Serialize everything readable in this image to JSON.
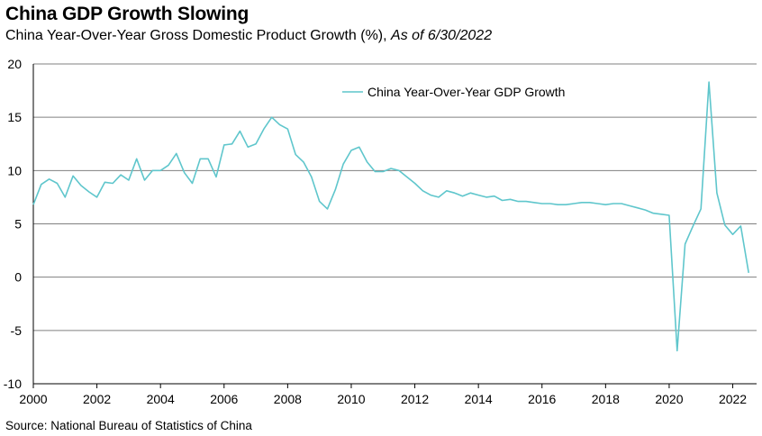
{
  "header": {
    "title": "China GDP Growth Slowing",
    "subtitle_main": "China Year-Over-Year Gross Domestic Product Growth (%), ",
    "subtitle_date": "As of 6/30/2022"
  },
  "footer": {
    "source": "Source: National Bureau of Statistics of China"
  },
  "colors": {
    "series": "#5fc6cc",
    "grid": "#808080",
    "axis": "#000000"
  },
  "chart_data": {
    "type": "line",
    "title": "China GDP Growth Slowing",
    "xlabel": "",
    "ylabel": "",
    "xlim": [
      2000,
      2022.75
    ],
    "ylim": [
      -10,
      20
    ],
    "yticks": [
      20,
      15,
      10,
      5,
      0,
      -5,
      -10
    ],
    "ytick_labels": [
      "20",
      "15",
      "10",
      "5",
      "0",
      "-5",
      "-10"
    ],
    "xticks": [
      2000,
      2002,
      2004,
      2006,
      2008,
      2010,
      2012,
      2014,
      2016,
      2018,
      2020,
      2022
    ],
    "xtick_labels": [
      "2000",
      "2002",
      "2004",
      "2006",
      "2008",
      "2010",
      "2012",
      "2014",
      "2016",
      "2018",
      "2020",
      "2022"
    ],
    "grid": true,
    "legend_position": "top-center",
    "series": [
      {
        "name": "China Year-Over-Year GDP Growth",
        "x": [
          2000,
          2000.25,
          2000.5,
          2000.75,
          2001,
          2001.25,
          2001.5,
          2001.75,
          2002,
          2002.25,
          2002.5,
          2002.75,
          2003,
          2003.25,
          2003.5,
          2003.75,
          2004,
          2004.25,
          2004.5,
          2004.75,
          2005,
          2005.25,
          2005.5,
          2005.75,
          2006,
          2006.25,
          2006.5,
          2006.75,
          2007,
          2007.25,
          2007.5,
          2007.75,
          2008,
          2008.25,
          2008.5,
          2008.75,
          2009,
          2009.25,
          2009.5,
          2009.75,
          2010,
          2010.25,
          2010.5,
          2010.75,
          2011,
          2011.25,
          2011.5,
          2011.75,
          2012,
          2012.25,
          2012.5,
          2012.75,
          2013,
          2013.25,
          2013.5,
          2013.75,
          2014,
          2014.25,
          2014.5,
          2014.75,
          2015,
          2015.25,
          2015.5,
          2015.75,
          2016,
          2016.25,
          2016.5,
          2016.75,
          2017,
          2017.25,
          2017.5,
          2017.75,
          2018,
          2018.25,
          2018.5,
          2018.75,
          2019,
          2019.25,
          2019.5,
          2019.75,
          2020,
          2020.25,
          2020.5,
          2020.75,
          2021,
          2021.25,
          2021.5,
          2021.75,
          2022,
          2022.25,
          2022.5
        ],
        "values": [
          6.8,
          8.7,
          9.2,
          8.8,
          7.5,
          9.5,
          8.6,
          8.0,
          7.5,
          8.9,
          8.8,
          9.6,
          9.1,
          11.1,
          9.1,
          10.0,
          10.0,
          10.5,
          11.6,
          9.8,
          8.8,
          11.1,
          11.1,
          9.4,
          12.4,
          12.5,
          13.7,
          12.2,
          12.5,
          13.9,
          15.0,
          14.3,
          13.9,
          11.5,
          10.8,
          9.4,
          7.1,
          6.4,
          8.2,
          10.6,
          11.9,
          12.2,
          10.8,
          9.9,
          9.9,
          10.2,
          10.0,
          9.4,
          8.8,
          8.1,
          7.7,
          7.5,
          8.1,
          7.9,
          7.6,
          7.9,
          7.7,
          7.5,
          7.6,
          7.2,
          7.3,
          7.1,
          7.1,
          7.0,
          6.9,
          6.9,
          6.8,
          6.8,
          6.9,
          7.0,
          7.0,
          6.9,
          6.8,
          6.9,
          6.9,
          6.7,
          6.5,
          6.3,
          6.0,
          5.9,
          5.8,
          -6.9,
          3.1,
          4.8,
          6.4,
          18.3,
          7.9,
          4.9,
          4.0,
          4.8,
          0.4
        ]
      }
    ]
  }
}
